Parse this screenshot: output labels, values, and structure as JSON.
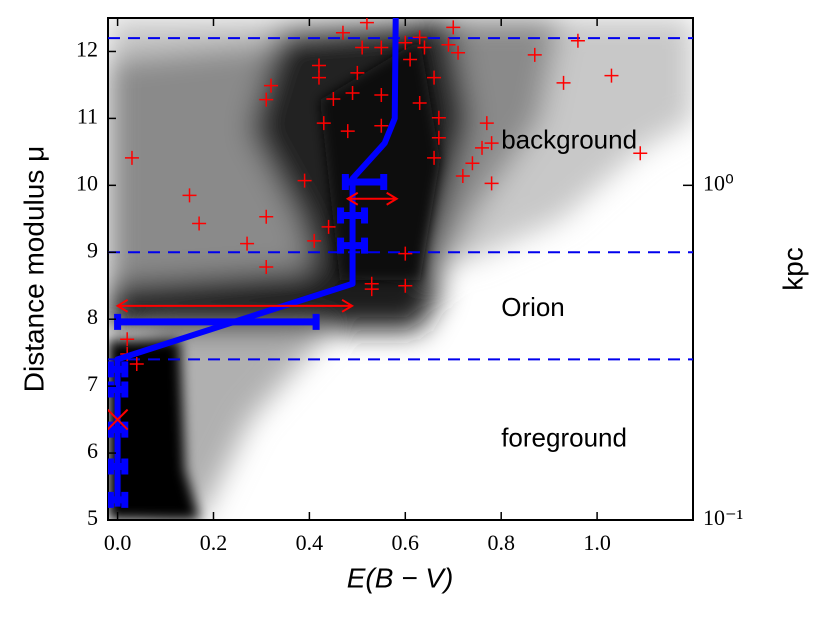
{
  "chart_data": {
    "type": "line",
    "x_label": "E(B − V)",
    "y_label": "Distance modulus μ",
    "y2_label": "kpc",
    "xlim": [
      -0.02,
      1.2
    ],
    "ylim": [
      5,
      12.5
    ],
    "y2lim": [
      0.1,
      3.162
    ],
    "y2_log": true,
    "xticks": [
      {
        "value": 0,
        "label": "0.0"
      },
      0.2,
      0.4,
      0.6,
      0.8,
      {
        "value": 1,
        "label": "1.0"
      }
    ],
    "yticks": [
      5,
      6,
      7,
      8,
      9,
      10,
      11,
      12
    ],
    "y2ticks": [
      {
        "value": 0.1,
        "label": "10⁻¹"
      },
      {
        "value": 1,
        "label": "10⁰"
      }
    ],
    "annotations": [
      {
        "text": "background",
        "x": 0.8,
        "y": 10.65
      },
      {
        "text": "Orion",
        "x": 0.8,
        "y": 8.15
      },
      {
        "text": "foreground",
        "x": 0.8,
        "y": 6.2
      }
    ],
    "reference_lines": {
      "color": "#0000ee",
      "values": [
        7.4,
        9.0,
        12.2
      ]
    },
    "profile": {
      "color": "#0000ff",
      "x": [
        0.0,
        0.0,
        0.49,
        0.49,
        0.557,
        0.578,
        0.58
      ],
      "y": [
        5.2,
        7.4,
        8.53,
        10.1,
        10.63,
        11.0,
        12.5
      ]
    },
    "error_bars": {
      "color": "#0000ff",
      "items": [
        {
          "x": 0.0,
          "y": 5.3,
          "xerr": 0.015
        },
        {
          "x": 0.0,
          "y": 5.8,
          "xerr": 0.015
        },
        {
          "x": 0.0,
          "y": 6.35,
          "xerr": 0.015
        },
        {
          "x": 0.0,
          "y": 6.95,
          "xerr": 0.015
        },
        {
          "x": 0.0,
          "y": 7.25,
          "xerr": 0.015
        },
        {
          "x": 0.207,
          "y": 7.96,
          "xerr": 0.207
        },
        {
          "x": 0.49,
          "y": 9.1,
          "xerr": 0.025
        },
        {
          "x": 0.49,
          "y": 9.55,
          "xerr": 0.025
        },
        {
          "x": 0.515,
          "y": 10.05,
          "xerr": 0.04
        }
      ]
    },
    "arrows": {
      "color": "#ff0000",
      "items": [
        {
          "y": 9.8,
          "x_start": 0.48,
          "x_end": 0.582
        },
        {
          "y": 8.2,
          "x_start": 0.0,
          "x_end": 0.489
        }
      ]
    },
    "cross": {
      "color": "#ff0000",
      "x": 0.0,
      "y": 6.5
    },
    "markers": {
      "color": "#ff0000",
      "x": [
        0.03,
        0.15,
        0.17,
        0.27,
        0.31,
        0.31,
        0.31,
        0.32,
        0.39,
        0.41,
        0.42,
        0.42,
        0.43,
        0.44,
        0.45,
        0.48,
        0.49,
        0.5,
        0.47,
        0.51,
        0.52,
        0.55,
        0.55,
        0.53,
        0.53,
        0.6,
        0.6,
        0.6,
        0.61,
        0.63,
        0.64,
        0.66,
        0.66,
        0.67,
        0.67,
        0.69,
        0.7,
        0.71,
        0.72,
        0.74,
        0.76,
        0.78,
        0.77,
        0.78,
        0.87,
        0.96,
        0.93,
        1.03,
        1.09,
        0.02,
        0.04,
        0.02,
        0.63,
        0.55
      ],
      "y": [
        10.41,
        9.85,
        9.43,
        9.13,
        9.53,
        8.78,
        11.28,
        11.49,
        10.07,
        9.17,
        11.79,
        11.61,
        10.93,
        9.38,
        11.29,
        10.81,
        11.38,
        11.68,
        12.28,
        12.06,
        12.43,
        12.06,
        11.35,
        8.53,
        8.45,
        8.98,
        8.5,
        12.13,
        11.88,
        11.23,
        12.06,
        11.61,
        10.41,
        10.71,
        11.01,
        12.1,
        12.36,
        11.98,
        10.14,
        10.33,
        10.56,
        10.03,
        10.93,
        10.63,
        11.95,
        12.16,
        11.53,
        11.64,
        10.48,
        7.7,
        7.33,
        7.48,
        12.21,
        10.89
      ]
    }
  }
}
